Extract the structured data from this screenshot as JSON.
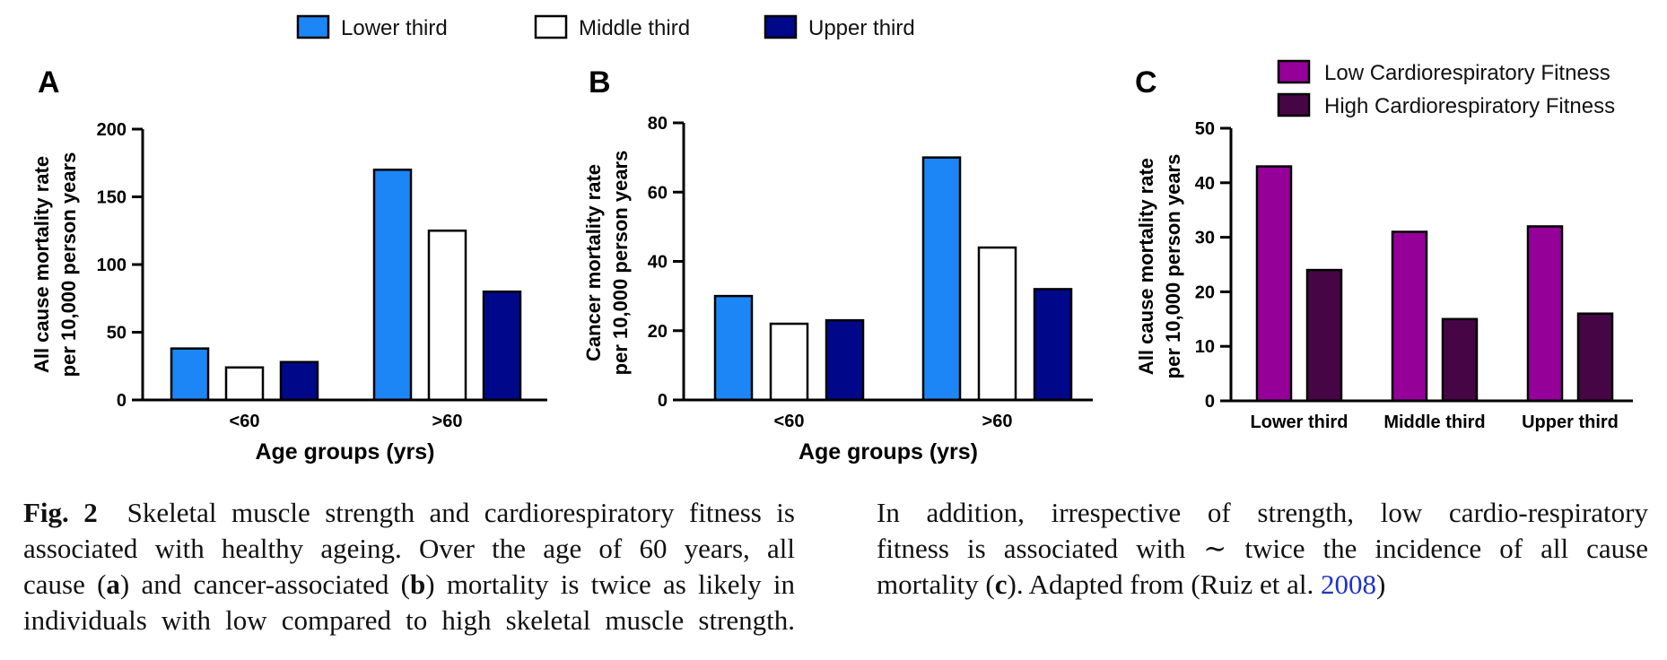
{
  "figure": {
    "top_legend": [
      {
        "label": "Lower third",
        "color": "#1c86f7"
      },
      {
        "label": "Middle third",
        "color": "#ffffff"
      },
      {
        "label": "Upper third",
        "color": "#00088a"
      }
    ]
  },
  "chart_data": [
    {
      "panel": "A",
      "type": "bar",
      "categories": [
        "<60",
        ">60"
      ],
      "series": [
        {
          "name": "Lower third",
          "values": [
            38,
            170
          ],
          "color": "#1c86f7"
        },
        {
          "name": "Middle third",
          "values": [
            24,
            125
          ],
          "color": "#ffffff"
        },
        {
          "name": "Upper third",
          "values": [
            28,
            80
          ],
          "color": "#00088a"
        }
      ],
      "xlabel": "Age groups (yrs)",
      "ylabel": [
        "All cause mortality rate",
        "per 10,000 person years"
      ],
      "ylim": [
        0,
        200
      ],
      "yticks": [
        0,
        50,
        100,
        150,
        200
      ],
      "grid": false
    },
    {
      "panel": "B",
      "type": "bar",
      "categories": [
        "<60",
        ">60"
      ],
      "series": [
        {
          "name": "Lower third",
          "values": [
            30,
            70
          ],
          "color": "#1c86f7"
        },
        {
          "name": "Middle third",
          "values": [
            22,
            44
          ],
          "color": "#ffffff"
        },
        {
          "name": "Upper third",
          "values": [
            23,
            32
          ],
          "color": "#00088a"
        }
      ],
      "xlabel": "Age groups (yrs)",
      "ylabel": [
        "Cancer mortality rate",
        "per 10,000 person years"
      ],
      "ylim": [
        0,
        80
      ],
      "yticks": [
        0,
        20,
        40,
        60,
        80
      ],
      "grid": false
    },
    {
      "panel": "C",
      "type": "bar",
      "categories": [
        "Lower third",
        "Middle third",
        "Upper third"
      ],
      "series": [
        {
          "name": "Low Cardiorespiratory Fitness",
          "values": [
            43,
            31,
            32
          ],
          "color": "#950099"
        },
        {
          "name": "High Cardiorespiratory Fitness",
          "values": [
            24,
            15,
            16
          ],
          "color": "#460646"
        }
      ],
      "xlabel": "",
      "ylabel": [
        "All cause mortality rate",
        "per 10,000 person years"
      ],
      "ylim": [
        0,
        50
      ],
      "yticks": [
        0,
        10,
        20,
        30,
        40,
        50
      ],
      "legend_position": "top-right",
      "grid": false
    }
  ],
  "caption": {
    "label": "Fig. 2",
    "left_lines": [
      "Skeletal muscle strength and cardiorespiratory fitness is",
      "associated with healthy ageing. Over the age of 60 years, all",
      "cause (a) and cancer-associated (b) mortality is twice as likely in",
      "individuals with low compared to high skeletal muscle strength."
    ],
    "right_lines": [
      "In addition, irrespective of strength, low cardio-respiratory",
      "fitness is associated with ∼ twice the incidence of all cause",
      "mortality (c). Adapted from (Ruiz et al. 2008)"
    ],
    "left_parts": {
      "l3a": "cause (",
      "l3b": "a",
      "l3c": ") and cancer-associated (",
      "l3d": "b",
      "l3e": ") mortality is twice as likely in"
    },
    "right_parts": {
      "l3a": "mortality (",
      "l3b": "c",
      "l3c": "). Adapted from (Ruiz et al. ",
      "l3d": "2008",
      "l3e": ")"
    }
  }
}
